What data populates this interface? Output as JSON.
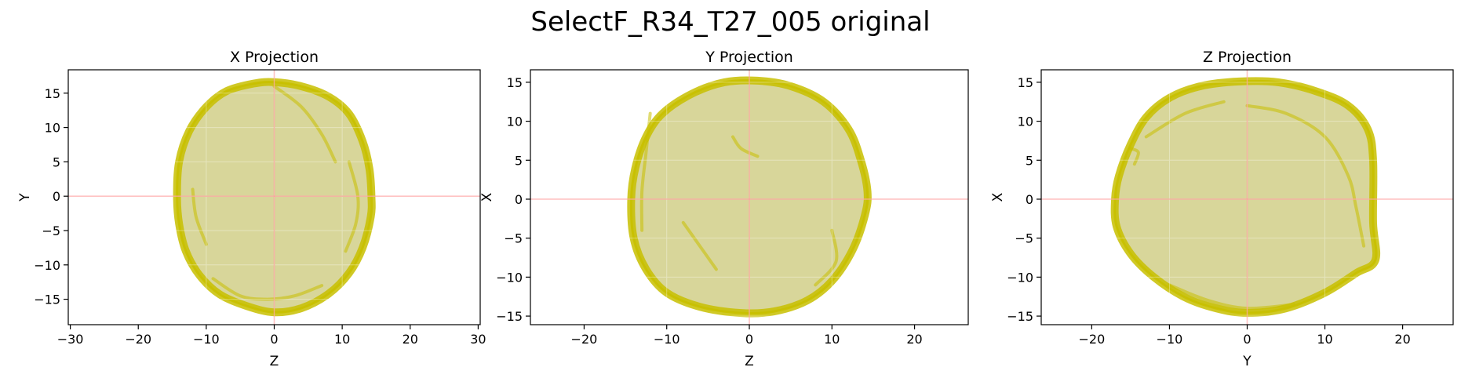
{
  "figure": {
    "title": "SelectF_R34_T27_005 original"
  },
  "colors": {
    "shape": "#c8c000",
    "fill": "#d8d69a",
    "crosshair": "#ff9999",
    "grid": "#ffffff"
  },
  "chart_data": [
    {
      "type": "scatter",
      "title": "X Projection",
      "xlabel": "Z",
      "ylabel": "Y",
      "xlim": [
        -30.3,
        30.3
      ],
      "ylim": [
        -18.7,
        18.4
      ],
      "xticks": [
        -30,
        -20,
        -10,
        0,
        10,
        20,
        30
      ],
      "yticks": [
        -15,
        -10,
        -5,
        0,
        5,
        10,
        15
      ],
      "xtick_labels": [
        "−30",
        "−20",
        "−10",
        "0",
        "10",
        "20",
        "30"
      ],
      "ytick_labels": [
        "−15",
        "−10",
        "−5",
        "0",
        "5",
        "10",
        "15"
      ],
      "crosshair": [
        0,
        0
      ],
      "outline": [
        [
          0,
          -16.9
        ],
        [
          4,
          -16.3
        ],
        [
          8,
          -14.2
        ],
        [
          11,
          -11.2
        ],
        [
          13,
          -7.5
        ],
        [
          14.2,
          -3
        ],
        [
          14.3,
          0
        ],
        [
          14,
          4
        ],
        [
          13,
          8
        ],
        [
          11,
          12
        ],
        [
          8,
          14.5
        ],
        [
          4,
          16
        ],
        [
          0,
          16.6
        ],
        [
          -3,
          16.4
        ],
        [
          -7,
          15.3
        ],
        [
          -10,
          13
        ],
        [
          -12.5,
          9.5
        ],
        [
          -14,
          5
        ],
        [
          -14.3,
          0
        ],
        [
          -14,
          -4
        ],
        [
          -13,
          -8
        ],
        [
          -11,
          -11.5
        ],
        [
          -8,
          -14.3
        ],
        [
          -4,
          -16
        ]
      ],
      "ridges": [
        [
          [
            -9,
            -12
          ],
          [
            -5,
            -14.5
          ],
          [
            -1,
            -15
          ],
          [
            3,
            -14.5
          ],
          [
            7,
            -13
          ]
        ],
        [
          [
            11,
            5
          ],
          [
            12.3,
            0
          ],
          [
            12,
            -4
          ],
          [
            10.5,
            -8
          ]
        ],
        [
          [
            0,
            16
          ],
          [
            4,
            13
          ],
          [
            7,
            9
          ],
          [
            9,
            5
          ]
        ],
        [
          [
            -12,
            1
          ],
          [
            -11.5,
            -3
          ],
          [
            -10,
            -7
          ]
        ]
      ]
    },
    {
      "type": "scatter",
      "title": "Y Projection",
      "xlabel": "Z",
      "ylabel": "X",
      "xlim": [
        -26.5,
        26.5
      ],
      "ylim": [
        -16.1,
        16.6
      ],
      "xticks": [
        -20,
        -10,
        0,
        10,
        20
      ],
      "yticks": [
        -15,
        -10,
        -5,
        0,
        5,
        10,
        15
      ],
      "xtick_labels": [
        "−20",
        "−10",
        "0",
        "10",
        "20"
      ],
      "ytick_labels": [
        "−15",
        "−10",
        "−5",
        "0",
        "5",
        "10",
        "15"
      ],
      "crosshair": [
        0,
        0
      ],
      "outline": [
        [
          -1,
          -14.6
        ],
        [
          3,
          -14.4
        ],
        [
          7,
          -13
        ],
        [
          10,
          -10.5
        ],
        [
          12.5,
          -6.5
        ],
        [
          14,
          -2
        ],
        [
          14.3,
          1
        ],
        [
          13.5,
          5
        ],
        [
          12,
          9
        ],
        [
          9,
          12.5
        ],
        [
          5,
          14.5
        ],
        [
          1,
          15.2
        ],
        [
          -3,
          15
        ],
        [
          -7,
          13.5
        ],
        [
          -10.5,
          11
        ],
        [
          -12.5,
          8
        ],
        [
          -13.8,
          4
        ],
        [
          -14.3,
          0
        ],
        [
          -14,
          -5
        ],
        [
          -12.5,
          -9
        ],
        [
          -10,
          -12
        ],
        [
          -6,
          -13.8
        ]
      ],
      "ridges": [
        [
          [
            -12,
            11
          ],
          [
            -12.5,
            6
          ],
          [
            -13,
            1
          ],
          [
            -13,
            -4
          ]
        ],
        [
          [
            -2,
            8
          ],
          [
            -1,
            6.5
          ],
          [
            1,
            5.5
          ]
        ],
        [
          [
            10,
            -4
          ],
          [
            10.5,
            -8
          ],
          [
            8,
            -11
          ]
        ],
        [
          [
            -8,
            -3
          ],
          [
            -6,
            -6
          ],
          [
            -4,
            -9
          ]
        ]
      ]
    },
    {
      "type": "scatter",
      "title": "Z Projection",
      "xlabel": "Y",
      "ylabel": "X",
      "xlim": [
        -26.5,
        26.5
      ],
      "ylim": [
        -16.1,
        16.6
      ],
      "xticks": [
        -20,
        -10,
        0,
        10,
        20
      ],
      "yticks": [
        -15,
        -10,
        -5,
        0,
        5,
        10,
        15
      ],
      "xtick_labels": [
        "−20",
        "−10",
        "0",
        "10",
        "20"
      ],
      "ytick_labels": [
        "−15",
        "−10",
        "−5",
        "0",
        "5",
        "10",
        "15"
      ],
      "crosshair": [
        0,
        0
      ],
      "outline": [
        [
          0,
          -14.6
        ],
        [
          5,
          -14
        ],
        [
          10,
          -12
        ],
        [
          14,
          -9.5
        ],
        [
          16.5,
          -7.8
        ],
        [
          16.2,
          -3
        ],
        [
          16.2,
          5
        ],
        [
          15.5,
          9
        ],
        [
          13,
          12
        ],
        [
          9,
          13.8
        ],
        [
          4,
          15
        ],
        [
          -1,
          15.1
        ],
        [
          -6,
          14.5
        ],
        [
          -10,
          13
        ],
        [
          -13,
          10.5
        ],
        [
          -15,
          7
        ],
        [
          -16.5,
          3
        ],
        [
          -17,
          0
        ],
        [
          -16.8,
          -3.5
        ],
        [
          -15,
          -7
        ],
        [
          -12,
          -10
        ],
        [
          -8,
          -12.6
        ],
        [
          -4,
          -14
        ]
      ],
      "ridges": [
        [
          [
            0,
            12
          ],
          [
            5,
            11
          ],
          [
            10,
            8
          ],
          [
            13,
            3
          ],
          [
            14,
            -1
          ],
          [
            15,
            -6
          ]
        ],
        [
          [
            -15,
            6.5
          ],
          [
            -14,
            6
          ],
          [
            -14.5,
            4.5
          ]
        ],
        [
          [
            -10,
            -11
          ],
          [
            -5,
            -13
          ],
          [
            0,
            -14
          ],
          [
            6,
            -13.5
          ]
        ],
        [
          [
            -13,
            8
          ],
          [
            -8,
            11
          ],
          [
            -3,
            12.5
          ]
        ]
      ]
    }
  ]
}
